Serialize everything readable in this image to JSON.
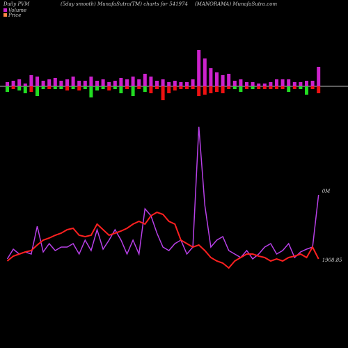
{
  "chart_data": {
    "type": "pvm",
    "title_left": "Daily PVM",
    "title": "(5day smooth) MunafaSutra(TM) charts for 541974",
    "title_right": "(MANORAMA) MunafaSutra.com",
    "volume_bars": {
      "up_color": "#cc22cc",
      "up": [
        6,
        8,
        10,
        4,
        16,
        14,
        8,
        10,
        12,
        8,
        10,
        14,
        8,
        8,
        14,
        8,
        10,
        6,
        8,
        12,
        10,
        14,
        10,
        18,
        14,
        8,
        10,
        6,
        8,
        6,
        6,
        10,
        52,
        40,
        26,
        20,
        16,
        18,
        8,
        10,
        6,
        6,
        4,
        4,
        6,
        10,
        10,
        10,
        6,
        6,
        8,
        8,
        28
      ],
      "down": [
        8,
        4,
        6,
        10,
        8,
        14,
        4,
        4,
        4,
        4,
        6,
        4,
        6,
        4,
        16,
        6,
        4,
        6,
        4,
        10,
        4,
        14,
        4,
        8,
        10,
        4,
        20,
        10,
        6,
        4,
        4,
        4,
        14,
        12,
        10,
        8,
        10,
        4,
        4,
        8,
        4,
        4,
        4,
        4,
        4,
        4,
        4,
        8,
        4,
        4,
        12,
        4,
        10
      ],
      "down_colors": [
        "#22dd22",
        "#ee1111",
        "#22dd22",
        "#22dd22",
        "#ee1111",
        "#22dd22",
        "#22dd22",
        "#ee1111",
        "#22dd22",
        "#22dd22",
        "#ee1111",
        "#22dd22",
        "#ee1111",
        "#22dd22",
        "#22dd22",
        "#22dd22",
        "#22dd22",
        "#ee1111",
        "#22dd22",
        "#22dd22",
        "#ee1111",
        "#22dd22",
        "#ee1111",
        "#22dd22",
        "#ee1111",
        "#ee1111",
        "#ee1111",
        "#ee1111",
        "#ee1111",
        "#ee1111",
        "#ee1111",
        "#ee1111",
        "#ee1111",
        "#ee1111",
        "#ee1111",
        "#ee1111",
        "#ee1111",
        "#ee1111",
        "#22dd22",
        "#22dd22",
        "#ee1111",
        "#22dd22",
        "#ee1111",
        "#ee1111",
        "#ee1111",
        "#ee1111",
        "#ee1111",
        "#22dd22",
        "#ee1111",
        "#22dd22",
        "#22dd22",
        "#ee1111",
        "#ee1111"
      ]
    },
    "ylim": [
      0,
      230
    ],
    "series": [
      {
        "name": "Volume",
        "color": "#b840e8",
        "end_label": "0M",
        "values": [
          28,
          42,
          35,
          38,
          35,
          75,
          38,
          50,
          40,
          45,
          45,
          50,
          35,
          55,
          40,
          70,
          42,
          55,
          70,
          55,
          35,
          55,
          35,
          100,
          90,
          65,
          45,
          40,
          50,
          55,
          35,
          45,
          218,
          105,
          45,
          55,
          60,
          40,
          35,
          30,
          40,
          28,
          35,
          45,
          50,
          35,
          40,
          50,
          30,
          38,
          42,
          45,
          120
        ]
      },
      {
        "name": "Price",
        "color": "#ff2020",
        "end_label": "1908.85",
        "values": [
          25,
          32,
          35,
          38,
          40,
          48,
          55,
          58,
          62,
          65,
          70,
          72,
          62,
          60,
          62,
          78,
          70,
          62,
          65,
          68,
          72,
          78,
          82,
          78,
          90,
          95,
          92,
          82,
          78,
          55,
          50,
          45,
          48,
          40,
          30,
          25,
          22,
          15,
          25,
          30,
          35,
          35,
          32,
          30,
          25,
          28,
          25,
          30,
          32,
          35,
          30,
          45,
          28
        ]
      }
    ],
    "legend_colors": [
      "#cc22cc",
      "#ff8844"
    ]
  }
}
